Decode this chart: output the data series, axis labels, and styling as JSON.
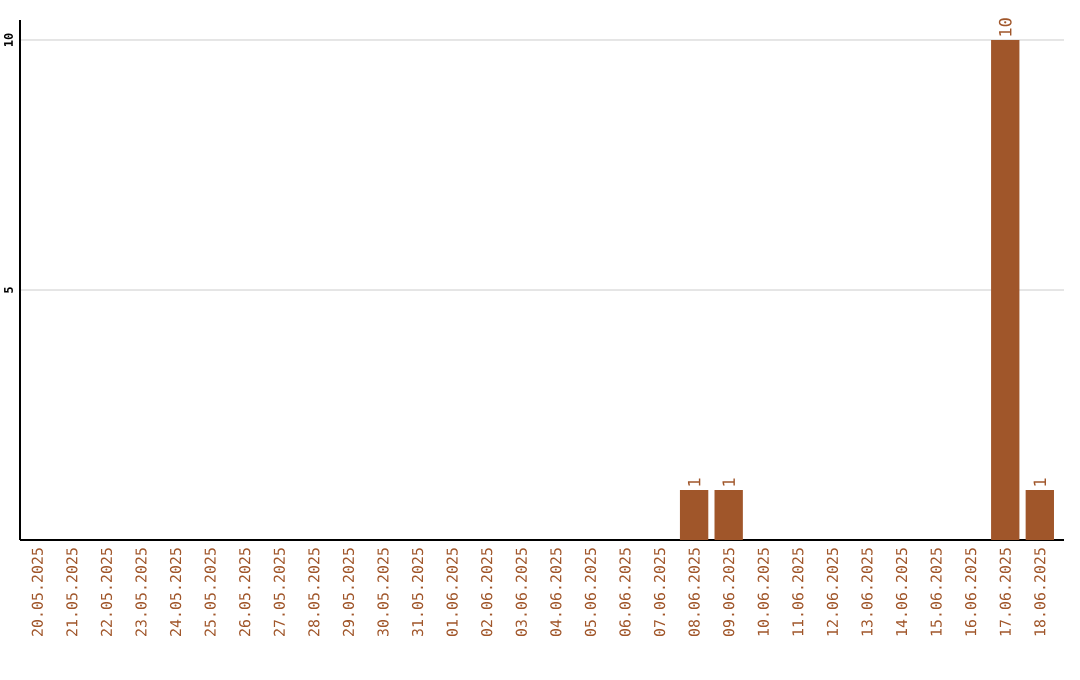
{
  "chart_data": {
    "type": "bar",
    "color": "#a0562a",
    "categories": [
      "20.05.2025",
      "21.05.2025",
      "22.05.2025",
      "23.05.2025",
      "24.05.2025",
      "25.05.2025",
      "26.05.2025",
      "27.05.2025",
      "28.05.2025",
      "29.05.2025",
      "30.05.2025",
      "31.05.2025",
      "01.06.2025",
      "02.06.2025",
      "03.06.2025",
      "04.06.2025",
      "05.06.2025",
      "06.06.2025",
      "07.06.2025",
      "08.06.2025",
      "09.06.2025",
      "10.06.2025",
      "11.06.2025",
      "12.06.2025",
      "13.06.2025",
      "14.06.2025",
      "15.06.2025",
      "16.06.2025",
      "17.06.2025",
      "18.06.2025"
    ],
    "values": [
      0,
      0,
      0,
      0,
      0,
      0,
      0,
      0,
      0,
      0,
      0,
      0,
      0,
      0,
      0,
      0,
      0,
      0,
      0,
      1,
      1,
      0,
      0,
      0,
      0,
      0,
      0,
      0,
      10,
      1
    ],
    "value_labels": [
      null,
      null,
      null,
      null,
      null,
      null,
      null,
      null,
      null,
      null,
      null,
      null,
      null,
      null,
      null,
      null,
      null,
      null,
      null,
      "1",
      "1",
      null,
      null,
      null,
      null,
      null,
      null,
      null,
      "10",
      "1"
    ],
    "ylim": [
      0,
      10.4
    ],
    "yticks": [
      5,
      10
    ],
    "grid": "y"
  }
}
